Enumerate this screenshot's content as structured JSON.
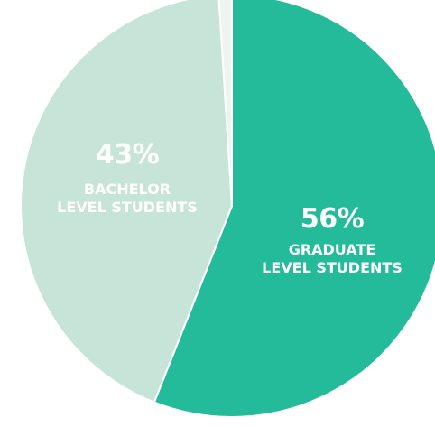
{
  "chart_data": {
    "type": "pie",
    "start_angle_deg": 0,
    "direction": "clockwise",
    "slices": [
      {
        "value": 56,
        "percent_label": "56%",
        "label_lines": [
          "GRADUATE",
          "LEVEL STUDENTS"
        ],
        "color": "#24bb9b"
      },
      {
        "value": 43,
        "percent_label": "43%",
        "label_lines": [
          "BACHELOR",
          "LEVEL STUDENTS"
        ],
        "color": "#c6e4d7"
      },
      {
        "value": 1,
        "percent_label": "",
        "label_lines": [],
        "color": "#eef5f1"
      }
    ]
  }
}
